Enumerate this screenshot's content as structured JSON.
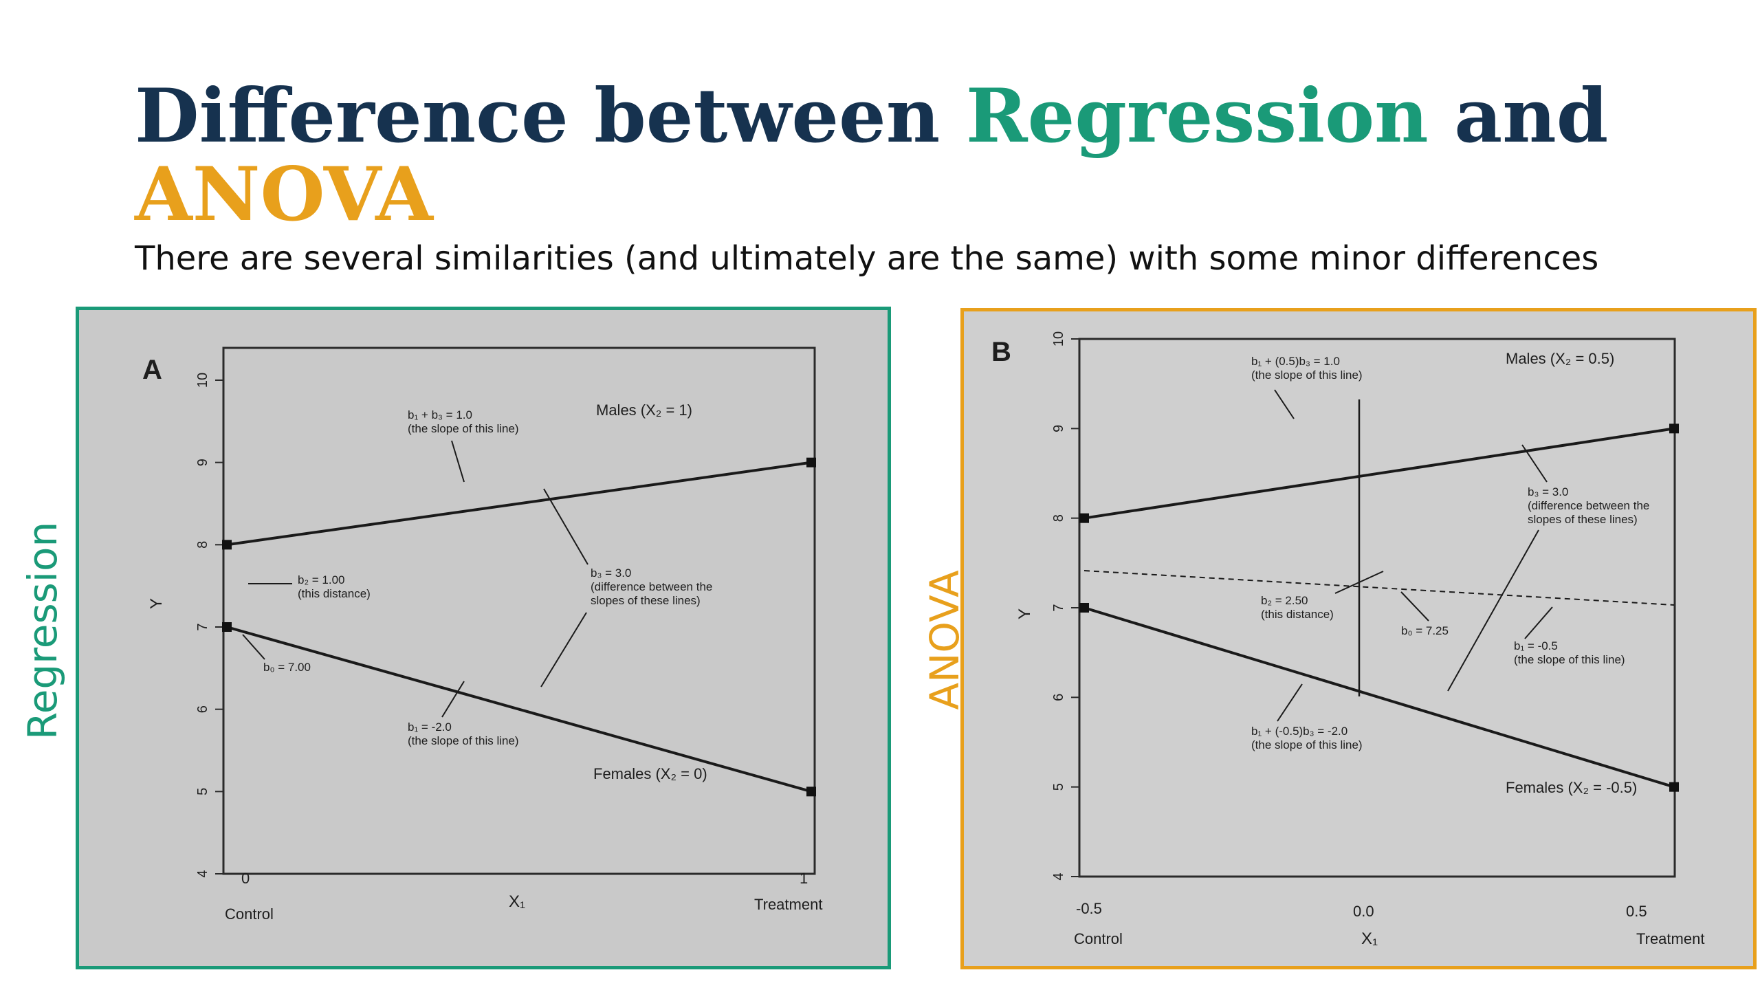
{
  "title": {
    "part1": "Difference between ",
    "part2": "Regression",
    "part3": " and",
    "part4": "ANOVA"
  },
  "subtitle": "There are several similarities (and ultimately are the same) with some minor differences",
  "colors": {
    "navy": "#16324f",
    "green": "#1a9a78",
    "orange": "#e8a01c"
  },
  "panel_a": {
    "side_label": "Regression",
    "letter": "A",
    "ylabel": "Y",
    "xlabel": "X₁",
    "x_left_tick": "0",
    "x_right_tick": "1",
    "x_left_label": "Control",
    "x_right_label": "Treatment",
    "yticks": [
      "4",
      "5",
      "6",
      "7",
      "8",
      "9",
      "10"
    ],
    "males_label": "Males (X₂ = 1)",
    "females_label": "Females (X₂ = 0)",
    "ann_slope_top_1": "b₁ + b₃ = 1.0",
    "ann_slope_top_2": "(the slope of this line)",
    "ann_b2_1": "b₂ = 1.00",
    "ann_b2_2": "(this distance)",
    "ann_b3_1": "b₃ = 3.0",
    "ann_b3_2": "(difference between the",
    "ann_b3_3": "slopes of these lines)",
    "ann_b0": "b₀ = 7.00",
    "ann_b1_1": "b₁ = -2.0",
    "ann_b1_2": "(the slope of this line)"
  },
  "panel_b": {
    "side_label": "ANOVA",
    "letter": "B",
    "ylabel": "Y",
    "xlabel": "X₁",
    "x_left_tick": "-0.5",
    "x_mid_tick": "0.0",
    "x_right_tick": "0.5",
    "x_left_label": "Control",
    "x_right_label": "Treatment",
    "yticks": [
      "4",
      "5",
      "6",
      "7",
      "8",
      "9",
      "10"
    ],
    "males_label": "Males (X₂ = 0.5)",
    "females_label": "Females (X₂ = -0.5)",
    "ann_top_1": "b₁ + (0.5)b₃ = 1.0",
    "ann_top_2": "(the slope of this line)",
    "ann_b3_1": "b₃ = 3.0",
    "ann_b3_2": "(difference between the",
    "ann_b3_3": "slopes of these lines)",
    "ann_b2_1": "b₂ = 2.50",
    "ann_b2_2": "(this distance)",
    "ann_b0": "b₀ = 7.25",
    "ann_b1_1": "b₁ = -0.5",
    "ann_b1_2": "(the slope of this line)",
    "ann_bottom_1": "b₁ + (-0.5)b₃ = -2.0",
    "ann_bottom_2": "(the slope of this line)"
  },
  "chart_data": [
    {
      "type": "line",
      "x": [
        0,
        1
      ],
      "series": [
        {
          "name": "Males (X₂ = 1)",
          "values": [
            8.0,
            9.0
          ]
        },
        {
          "name": "Females (X₂ = 0)",
          "values": [
            7.0,
            5.0
          ]
        }
      ],
      "ylim": [
        4,
        10
      ],
      "ylabel": "Y",
      "xlabel": "X₁",
      "grid": false
    },
    {
      "type": "line",
      "x": [
        -0.5,
        0.5
      ],
      "series": [
        {
          "name": "Males (X₂ = 0.5)",
          "values": [
            8.0,
            9.0
          ]
        },
        {
          "name": "Females (X₂ = -0.5)",
          "values": [
            7.0,
            5.0
          ]
        }
      ],
      "ylim": [
        4,
        10
      ],
      "ylabel": "Y",
      "xlabel": "X₁",
      "grid": false
    }
  ]
}
